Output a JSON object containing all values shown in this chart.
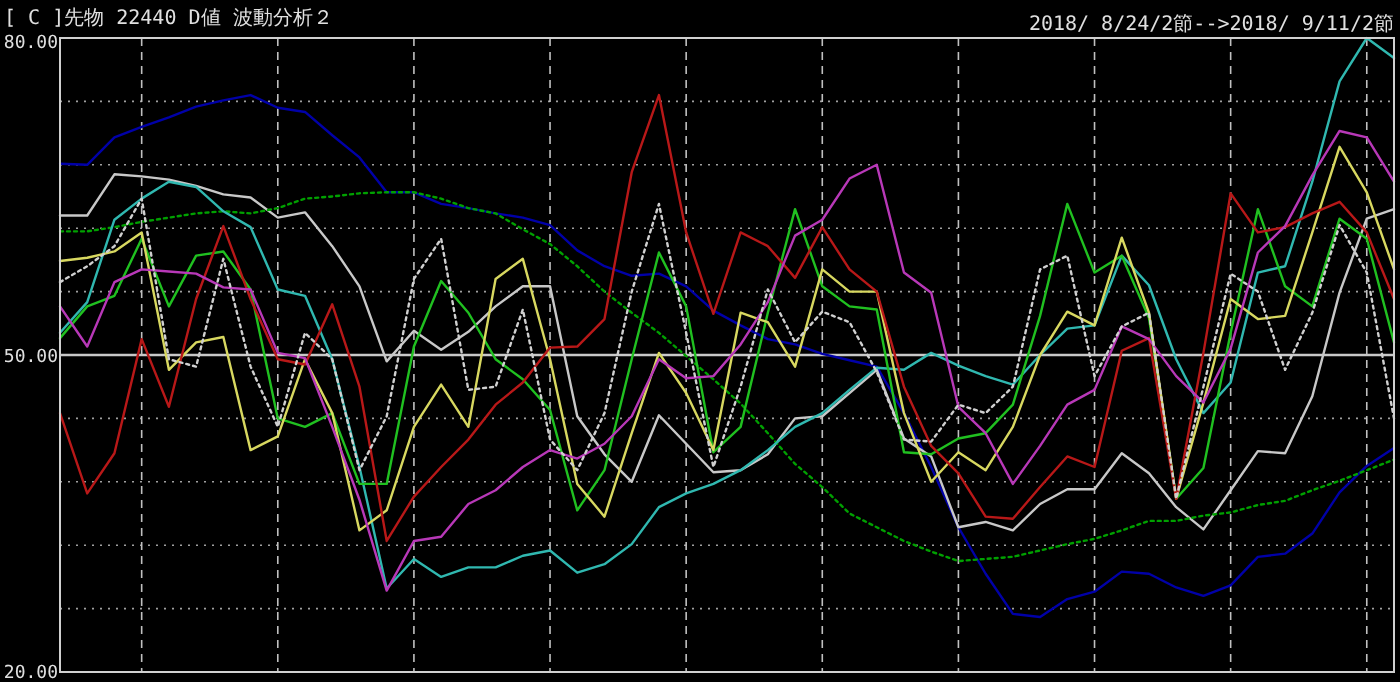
{
  "chart_data": {
    "type": "line",
    "title": "[ C ]先物  22440  D値  波動分析２",
    "subtitle": "2018/ 8/24/2節-->2018/ 9/11/2節",
    "categories": [
      null,
      null,
      null,
      null,
      null,
      null,
      null,
      null,
      null,
      null,
      null,
      null,
      null,
      null,
      null,
      null,
      null,
      null,
      null,
      null,
      null,
      null,
      null,
      null,
      null,
      null,
      null,
      null,
      null,
      null,
      null,
      null,
      null,
      null,
      null,
      null,
      null,
      null,
      null,
      null,
      null,
      null,
      null,
      null,
      null,
      null,
      null,
      null,
      null,
      null
    ],
    "ylim": [
      20,
      80
    ],
    "yticks": [
      {
        "value": 80,
        "label": "80.00"
      },
      {
        "value": 74,
        "label": null
      },
      {
        "value": 68,
        "label": null
      },
      {
        "value": 62,
        "label": null
      },
      {
        "value": 56,
        "label": null
      },
      {
        "value": 50,
        "label": "50.00"
      },
      {
        "value": 44,
        "label": null
      },
      {
        "value": 38,
        "label": null
      },
      {
        "value": 32,
        "label": null
      },
      {
        "value": 26,
        "label": null
      },
      {
        "value": 20,
        "label": "20.00"
      }
    ],
    "grid": true,
    "tick_labels": "y",
    "ref_lines": [
      {
        "axis": "y",
        "value": 50,
        "color": "#c8c8c8"
      }
    ],
    "series": [
      {
        "color": "#0000a8",
        "line_style": "solid",
        "values": [
          68.1,
          68,
          70.6,
          71.6,
          72.5,
          73.5,
          74.1,
          74.6,
          73.4,
          73,
          70.8,
          68.7,
          65.4,
          65.4,
          64.3,
          63.9,
          63.4,
          63,
          62.3,
          59.9,
          58.4,
          57.5,
          57.7,
          56.5,
          54.2,
          52.8,
          51.5,
          51,
          50.1,
          49.5,
          48.9,
          44.5,
          39.4,
          33.7,
          29.3,
          25.5,
          25.2,
          26.9,
          27.6,
          29.5,
          29.3,
          28,
          27.2,
          28.2,
          30.9,
          31.2,
          33.1,
          37,
          39.5,
          41.2
        ]
      },
      {
        "color": "#c8c8c8",
        "line_style": "solid",
        "values": [
          63.2,
          63.2,
          67.1,
          66.9,
          66.6,
          66,
          65.2,
          64.9,
          63,
          63.5,
          60.3,
          56.5,
          49.4,
          52.3,
          50.5,
          52.2,
          54.6,
          56.5,
          56.5,
          44.2,
          40.6,
          38,
          44.3,
          41.6,
          38.9,
          39.1,
          40.6,
          44,
          44.2,
          46.4,
          48.6,
          42.1,
          40.4,
          33.7,
          34.2,
          33.4,
          35.9,
          37.3,
          37.3,
          40.7,
          38.8,
          35.6,
          33.5,
          37.2,
          40.9,
          40.7,
          46.1,
          55.9,
          62.9,
          63.8
        ]
      },
      {
        "color": "#00a000",
        "line_style": "dotted",
        "values": [
          61.7,
          61.7,
          62.1,
          62.6,
          63,
          63.4,
          63.6,
          63.4,
          63.9,
          64.8,
          65,
          65.3,
          65.4,
          65.4,
          64.8,
          63.9,
          63.4,
          61.9,
          60.5,
          58.4,
          56,
          54,
          52.1,
          49.9,
          47.7,
          45.4,
          42.6,
          39.7,
          37.5,
          35,
          33.7,
          32.4,
          31.4,
          30.5,
          30.7,
          30.9,
          31.5,
          32.1,
          32.6,
          33.4,
          34.3,
          34.3,
          34.8,
          35.1,
          35.8,
          36.2,
          37.2,
          38.1,
          39.1,
          40.1
        ]
      },
      {
        "color": "#30b8b0",
        "line_style": "solid",
        "values": [
          52.1,
          55,
          62.8,
          64.8,
          66.4,
          65.9,
          63.6,
          62.1,
          56.2,
          55.6,
          49.6,
          39.4,
          27.9,
          30.7,
          29,
          29.9,
          29.9,
          31,
          31.5,
          29.4,
          30.2,
          32.1,
          35.6,
          36.9,
          37.8,
          39.1,
          41,
          43.2,
          44.5,
          46.7,
          48.8,
          48.6,
          50.2,
          49,
          48,
          47.2,
          50,
          52.5,
          52.8,
          59.4,
          56.6,
          49.6,
          44.5,
          47.4,
          57.8,
          58.4,
          66.4,
          75.9,
          80,
          78.1
        ]
      },
      {
        "color": "#20c020",
        "line_style": "solid",
        "values": [
          51.6,
          54.6,
          55.6,
          61,
          54.6,
          59.4,
          59.8,
          56.2,
          44,
          43.2,
          44.5,
          37.8,
          37.8,
          50.8,
          57,
          54,
          49.6,
          47.7,
          44.8,
          35.3,
          39.1,
          49.6,
          59.7,
          54.6,
          40.8,
          43.2,
          54,
          63.8,
          56.5,
          54.6,
          54.3,
          40.8,
          40.6,
          42.1,
          42.6,
          45.3,
          53.7,
          64.3,
          57.8,
          59.4,
          53.5,
          36.4,
          39.3,
          52.1,
          63.8,
          56.5,
          54.6,
          62.9,
          61,
          51.2
        ]
      },
      {
        "color": "#d8d860",
        "line_style": "solid",
        "values": [
          58.9,
          59.2,
          59.8,
          61.6,
          48.6,
          51.2,
          51.7,
          41,
          42.3,
          49.6,
          44.5,
          33.4,
          35.3,
          43.2,
          47.2,
          43.2,
          57.2,
          59.1,
          49.6,
          37.8,
          34.7,
          42.6,
          50.2,
          46.4,
          41,
          54,
          53.1,
          48.9,
          58.1,
          56,
          56,
          44.5,
          38,
          40.8,
          39.1,
          43.2,
          50,
          54.1,
          52.8,
          61.1,
          54,
          36.4,
          45.5,
          55.3,
          53.4,
          53.7,
          61.6,
          69.7,
          65.4,
          58.1
        ]
      },
      {
        "color": "#b81818",
        "line_style": "solid",
        "values": [
          44.5,
          36.9,
          40.7,
          51.5,
          45.1,
          55.3,
          62.2,
          55.3,
          49.6,
          49.1,
          54.8,
          47,
          32.4,
          36.6,
          39.4,
          42,
          45.3,
          47.4,
          50.7,
          50.8,
          53.4,
          67.3,
          74.6,
          61.6,
          53.9,
          61.6,
          60.3,
          57.3,
          62.1,
          58.1,
          56,
          47,
          41.4,
          38.8,
          34.7,
          34.5,
          37.5,
          40.4,
          39.4,
          50.4,
          51.6,
          36.4,
          50.2,
          65.3,
          61.6,
          62.1,
          63.4,
          64.5,
          61.6,
          55.3
        ]
      },
      {
        "color": "#b838b8",
        "line_style": "solid",
        "values": [
          54.6,
          50.8,
          56.9,
          58.1,
          57.9,
          57.7,
          56.4,
          56.2,
          50.2,
          49.7,
          43.2,
          36.3,
          27.7,
          32.4,
          32.8,
          35.9,
          37.2,
          39.4,
          41,
          40.2,
          41.6,
          44.2,
          49.6,
          47.8,
          48,
          51,
          55,
          61.3,
          62.8,
          66.7,
          68,
          57.8,
          55.9,
          45.1,
          42.6,
          37.8,
          41.4,
          45.3,
          46.7,
          52.7,
          51.5,
          48,
          45.5,
          50.6,
          59.7,
          62.2,
          67,
          71.2,
          70.6,
          66.4
        ]
      },
      {
        "color": "#d0d0d0",
        "line_style": "dotted",
        "values": [
          56.9,
          58.4,
          60.3,
          64.8,
          49.6,
          48.9,
          59.1,
          48.9,
          43.2,
          52.1,
          49.6,
          39.1,
          44.2,
          57.2,
          61,
          46.7,
          47,
          54.3,
          42,
          39.1,
          44.5,
          56,
          64.3,
          52.1,
          39.4,
          47,
          56.2,
          51.2,
          54.1,
          53.1,
          48.4,
          42,
          41.8,
          45.3,
          44.5,
          47,
          58.1,
          59.4,
          48,
          52.7,
          54,
          36.4,
          47,
          57.7,
          56,
          48.6,
          54,
          62.3,
          57.8,
          44
        ]
      }
    ]
  }
}
